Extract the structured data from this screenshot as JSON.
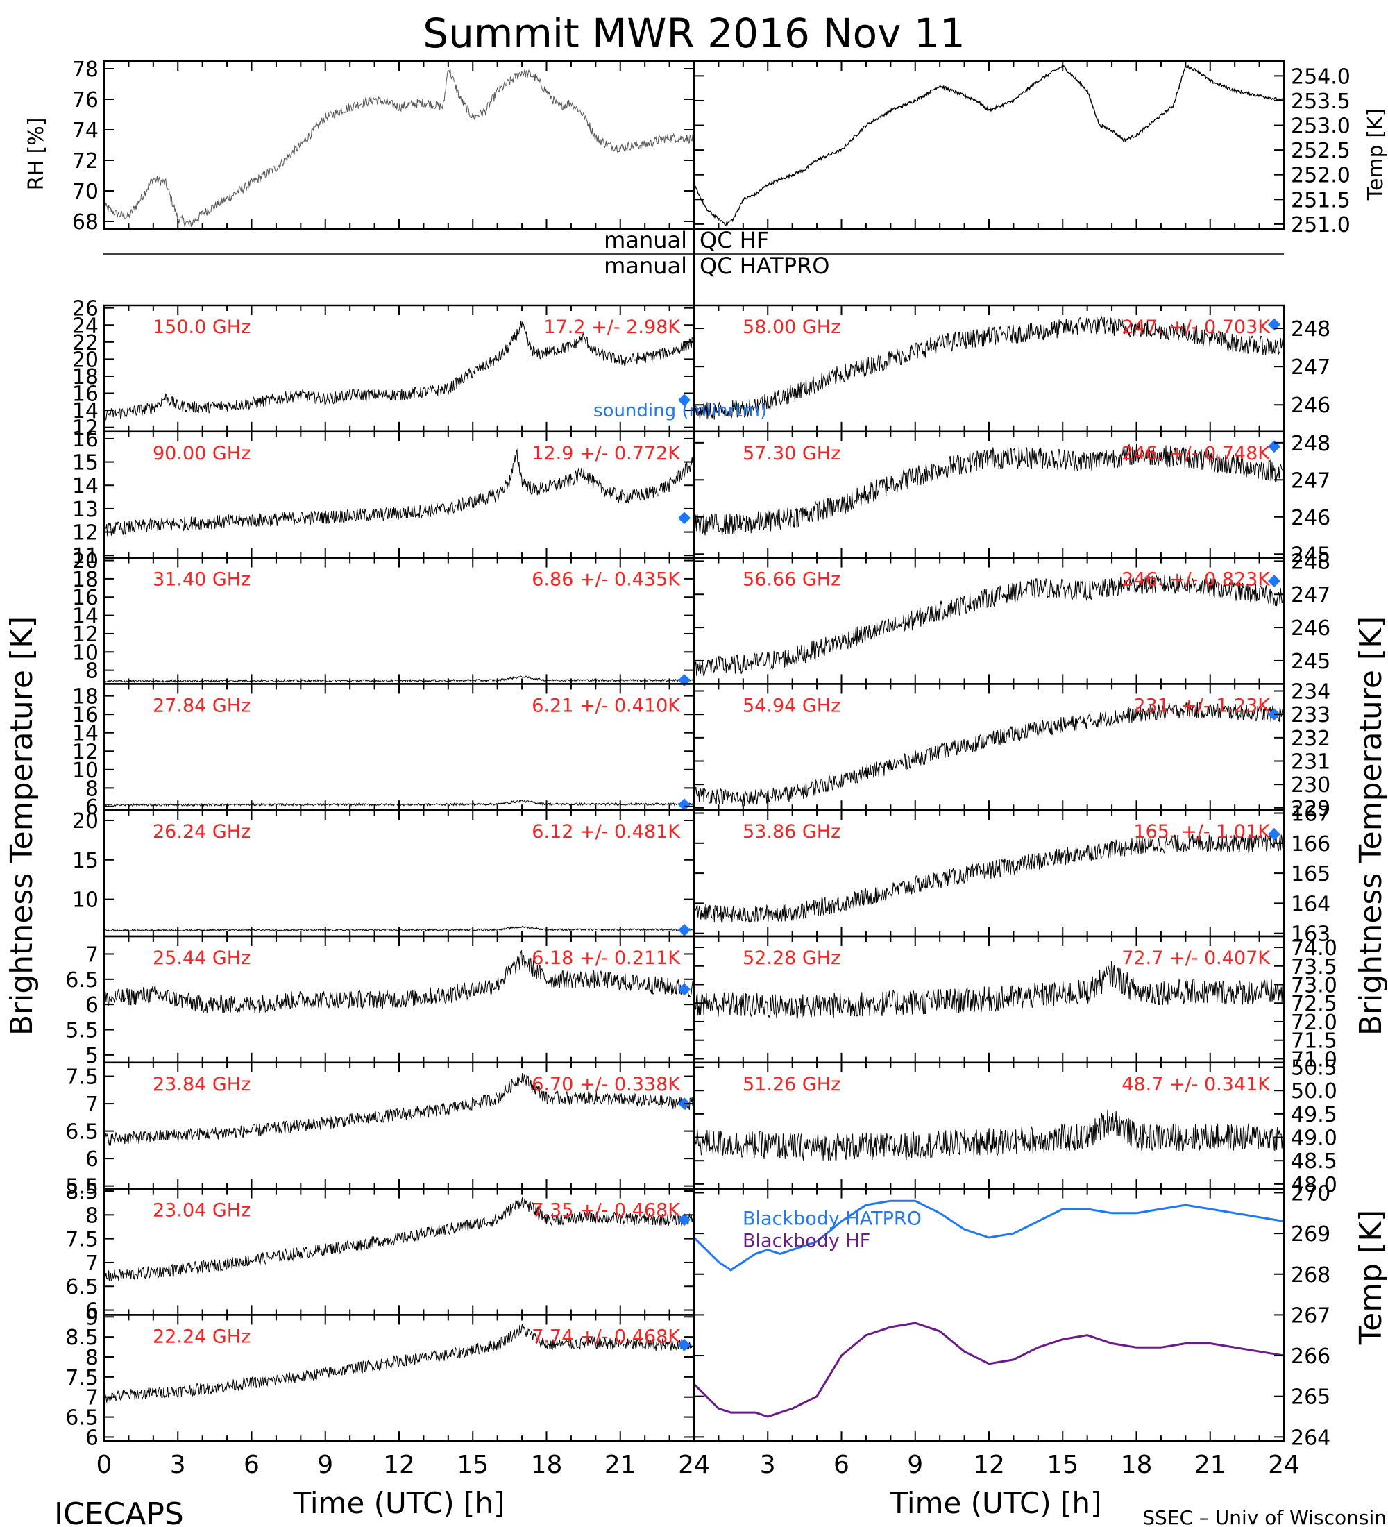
{
  "title": "Summit MWR 2016 Nov 11",
  "footer": {
    "left": "ICECAPS",
    "right": "SSEC – Univ of Wisconsin",
    "xlabel_left": "Time (UTC) [h]",
    "xlabel_right": "Time (UTC) [h]"
  },
  "axis_titles": {
    "left_main": "Brightness Temperature [K]",
    "right_main": "Brightness Temperature [K]",
    "rh": "RH [%]",
    "temp_top": "Temp [K]",
    "temp_bb": "Temp [K]"
  },
  "qc": {
    "label_hf_left": "manual",
    "label_hf_right": "QC HF",
    "label_hat_left": "manual",
    "label_hat_right": "QC HATPRO"
  },
  "colors": {
    "channel_label": "#ff2020",
    "sounding": "#1e78ff",
    "hatpro": "#1e78ff",
    "hf": "#6a1b8a",
    "data": "#000000"
  },
  "chart_data": {
    "type": "line",
    "x_ticks": [
      0,
      3,
      6,
      9,
      12,
      15,
      18,
      21,
      24
    ],
    "xlim": [
      0,
      24
    ],
    "sounding_label": "sounding (mlinrtm)",
    "met_rh": {
      "ylabel": "RH [%]",
      "ylim": [
        67.5,
        78.5
      ],
      "ticks": [
        68,
        70,
        72,
        74,
        76,
        78
      ],
      "x": [
        0,
        0.5,
        1,
        1.5,
        2,
        2.5,
        3,
        3.5,
        4,
        5,
        6,
        7,
        8,
        9,
        10,
        11,
        12,
        13,
        13.8,
        14,
        14.5,
        15,
        15.5,
        16,
        17,
        17.5,
        18,
        18.5,
        19,
        19.5,
        20,
        20.5,
        21,
        21.5,
        22,
        22.5,
        23,
        24
      ],
      "y": [
        69,
        68.5,
        68.3,
        69.5,
        70.8,
        70.5,
        68.2,
        67.8,
        68.5,
        69.5,
        70.5,
        71.5,
        73,
        74.8,
        75.5,
        76,
        75.5,
        75.8,
        75.5,
        78.1,
        76,
        74.8,
        75.2,
        76.5,
        77.8,
        77.5,
        76.5,
        75.5,
        75.8,
        75,
        73.5,
        73,
        72.8,
        73,
        73,
        73.3,
        73.5,
        73.4
      ]
    },
    "met_temp": {
      "ylabel": "Temp [K]",
      "ylim": [
        250.9,
        254.3
      ],
      "ticks": [
        251.0,
        251.5,
        252.0,
        252.5,
        253.0,
        253.5,
        254.0
      ],
      "x": [
        0,
        0.5,
        1,
        1.3,
        1.6,
        2,
        2.5,
        3,
        3.5,
        4,
        4.5,
        5,
        6,
        7,
        8,
        9,
        10,
        11,
        11.5,
        12,
        12.5,
        13,
        14,
        15,
        15.2,
        16,
        16.5,
        17,
        17.5,
        18,
        18.5,
        19,
        19.5,
        20,
        20.5,
        21,
        22,
        23,
        24
      ],
      "y": [
        251.8,
        251.3,
        251.1,
        251.0,
        251.1,
        251.5,
        251.6,
        251.8,
        251.9,
        252.0,
        252.1,
        252.3,
        252.5,
        253.0,
        253.3,
        253.5,
        253.8,
        253.6,
        253.5,
        253.3,
        253.4,
        253.5,
        253.9,
        254.2,
        254.1,
        253.7,
        253.0,
        252.9,
        252.7,
        252.8,
        253.0,
        253.2,
        253.4,
        254.2,
        254.1,
        253.9,
        253.7,
        253.6,
        253.5
      ]
    },
    "left_channels": [
      {
        "freq": "150.0 GHz",
        "stat": "17.2 +/- 2.98K",
        "ylim": [
          11.5,
          26.3
        ],
        "ticks": [
          12,
          14,
          16,
          18,
          20,
          22,
          24,
          26
        ],
        "noise": 0.7,
        "sounding": 15.2,
        "x": [
          0,
          1,
          2,
          2.5,
          3,
          4,
          6,
          8,
          9,
          10,
          12,
          14,
          15,
          16,
          16.5,
          17,
          17.3,
          17.6,
          18,
          19,
          19.5,
          20,
          21,
          22,
          23,
          24
        ],
        "y": [
          13.5,
          13.8,
          14.3,
          15.5,
          14.5,
          14.3,
          14.8,
          15.8,
          15.3,
          15.8,
          15.8,
          16.5,
          18.5,
          20,
          21.5,
          24,
          21.5,
          20.5,
          20.8,
          21.5,
          22.5,
          20.8,
          19.8,
          20.2,
          20.8,
          22
        ]
      },
      {
        "freq": "90.00 GHz",
        "stat": "12.9 +/- 0.772K",
        "ylim": [
          10.9,
          16.3
        ],
        "ticks": [
          11,
          12,
          13,
          14,
          15,
          16
        ],
        "noise": 0.3,
        "sounding": 12.6,
        "x": [
          0,
          2,
          4,
          6,
          8,
          10,
          12,
          14,
          15,
          16,
          16.5,
          16.8,
          17,
          17.5,
          18,
          19,
          19.5,
          20,
          21,
          22,
          23,
          24
        ],
        "y": [
          12.1,
          12.3,
          12.4,
          12.5,
          12.6,
          12.7,
          12.8,
          13,
          13.3,
          13.6,
          14.2,
          15.3,
          14.2,
          13.8,
          13.9,
          14.2,
          14.6,
          14,
          13.5,
          13.6,
          14,
          15
        ]
      },
      {
        "freq": "31.40 GHz",
        "stat": "6.86 +/- 0.435K",
        "ylim": [
          6.5,
          20.3
        ],
        "ticks": [
          8,
          10,
          12,
          14,
          16,
          18,
          20
        ],
        "noise": 0.12,
        "sounding": 6.9,
        "x": [
          0,
          6,
          12,
          16,
          17,
          18,
          24
        ],
        "y": [
          6.8,
          6.85,
          6.85,
          6.9,
          7.3,
          6.9,
          6.9
        ]
      },
      {
        "freq": "27.84 GHz",
        "stat": "6.21 +/- 0.410K",
        "ylim": [
          5.6,
          19.3
        ],
        "ticks": [
          6,
          8,
          10,
          12,
          14,
          16,
          18
        ],
        "noise": 0.12,
        "sounding": 6.2,
        "x": [
          0,
          6,
          12,
          16,
          17,
          18,
          24
        ],
        "y": [
          6.15,
          6.2,
          6.2,
          6.25,
          6.6,
          6.25,
          6.25
        ]
      },
      {
        "freq": "26.24 GHz",
        "stat": "6.12 +/- 0.481K",
        "ylim": [
          5.3,
          21.3
        ],
        "ticks": [
          10,
          15,
          20
        ],
        "noise": 0.12,
        "sounding": 6.1,
        "x": [
          0,
          6,
          12,
          16,
          17,
          18,
          24
        ],
        "y": [
          6.05,
          6.1,
          6.1,
          6.15,
          6.5,
          6.15,
          6.15
        ]
      },
      {
        "freq": "25.44 GHz",
        "stat": "6.18 +/- 0.211K",
        "ylim": [
          4.85,
          7.35
        ],
        "ticks": [
          5.0,
          5.5,
          6.0,
          6.5,
          7.0
        ],
        "noise": 0.18,
        "sounding": 6.3,
        "x": [
          0,
          2,
          4,
          6,
          8,
          10,
          12,
          14,
          16,
          17,
          18,
          20,
          22,
          24
        ],
        "y": [
          6.1,
          6.2,
          6.0,
          6.0,
          6.1,
          6.1,
          6.1,
          6.2,
          6.4,
          6.9,
          6.5,
          6.5,
          6.4,
          6.3
        ]
      },
      {
        "freq": "23.84 GHz",
        "stat": "6.70 +/- 0.338K",
        "ylim": [
          5.45,
          7.75
        ],
        "ticks": [
          5.5,
          6.0,
          6.5,
          7.0,
          7.5
        ],
        "noise": 0.12,
        "sounding": 7.0,
        "x": [
          0,
          2,
          4,
          6,
          8,
          10,
          12,
          14,
          16,
          17,
          18,
          20,
          22,
          24
        ],
        "y": [
          6.35,
          6.4,
          6.45,
          6.5,
          6.6,
          6.7,
          6.8,
          6.9,
          7.1,
          7.5,
          7.1,
          7.1,
          7.05,
          7.0
        ]
      },
      {
        "freq": "23.04 GHz",
        "stat": "7.35 +/- 0.468K",
        "ylim": [
          5.9,
          8.55
        ],
        "ticks": [
          6.0,
          6.5,
          7.0,
          7.5,
          8.0,
          8.5
        ],
        "noise": 0.13,
        "sounding": 7.9,
        "x": [
          0,
          2,
          4,
          6,
          8,
          10,
          12,
          14,
          16,
          17,
          18,
          20,
          22,
          24
        ],
        "y": [
          6.7,
          6.8,
          6.9,
          7.05,
          7.2,
          7.35,
          7.5,
          7.7,
          7.9,
          8.3,
          7.9,
          7.95,
          7.9,
          7.9
        ]
      },
      {
        "freq": "22.24 GHz",
        "stat": "7.74 +/- 0.468K",
        "ylim": [
          5.9,
          9.05
        ],
        "ticks": [
          6.0,
          6.5,
          7.0,
          7.5,
          8.0,
          8.5,
          9.0
        ],
        "noise": 0.15,
        "sounding": 8.3,
        "x": [
          0,
          2,
          4,
          6,
          8,
          10,
          12,
          14,
          16,
          17,
          18,
          20,
          22,
          24
        ],
        "y": [
          7.0,
          7.1,
          7.2,
          7.35,
          7.5,
          7.7,
          7.9,
          8.05,
          8.3,
          8.7,
          8.3,
          8.35,
          8.3,
          8.3
        ]
      }
    ],
    "right_channels": [
      {
        "freq": "58.00 GHz",
        "stat": "247. +/- 0.703K",
        "ylim": [
          245.3,
          248.6
        ],
        "ticks": [
          246,
          247,
          248
        ],
        "noise": 0.25,
        "sounding": 248.1,
        "x": [
          0,
          2,
          4,
          6,
          8,
          10,
          12,
          14,
          16,
          18,
          20,
          22,
          24
        ],
        "y": [
          245.8,
          245.9,
          246.3,
          246.8,
          247.2,
          247.6,
          247.8,
          247.9,
          248.1,
          248.0,
          247.9,
          247.6,
          247.5
        ]
      },
      {
        "freq": "57.30 GHz",
        "stat": "246. +/- 0.748K",
        "ylim": [
          244.9,
          248.3
        ],
        "ticks": [
          245,
          246,
          247,
          248
        ],
        "noise": 0.3,
        "sounding": 247.9,
        "x": [
          0,
          2,
          4,
          6,
          8,
          10,
          12,
          14,
          16,
          18,
          20,
          22,
          24
        ],
        "y": [
          245.8,
          245.8,
          246.0,
          246.3,
          246.9,
          247.3,
          247.6,
          247.6,
          247.5,
          247.7,
          247.6,
          247.4,
          247.2
        ]
      },
      {
        "freq": "56.66 GHz",
        "stat": "246. +/- 0.823K",
        "ylim": [
          244.3,
          248.1
        ],
        "ticks": [
          245,
          246,
          247,
          248
        ],
        "noise": 0.3,
        "sounding": 247.4,
        "x": [
          0,
          2,
          4,
          6,
          8,
          10,
          12,
          14,
          16,
          18,
          20,
          22,
          24
        ],
        "y": [
          244.8,
          244.9,
          245.1,
          245.6,
          246.0,
          246.5,
          246.9,
          247.2,
          247.1,
          247.3,
          247.3,
          247.1,
          246.9
        ]
      },
      {
        "freq": "54.94 GHz",
        "stat": "231. +/- 1.23K",
        "ylim": [
          228.9,
          234.3
        ],
        "ticks": [
          229,
          230,
          231,
          232,
          233,
          234
        ],
        "noise": 0.35,
        "sounding": 233.0,
        "x": [
          0,
          2,
          4,
          6,
          8,
          10,
          12,
          14,
          16,
          18,
          20,
          22,
          24
        ],
        "y": [
          229.6,
          229.4,
          229.6,
          230.2,
          230.8,
          231.4,
          231.9,
          232.4,
          232.7,
          233.0,
          233.2,
          233.1,
          233.0
        ]
      },
      {
        "freq": "53.86 GHz",
        "stat": "165. +/- 1.01K",
        "ylim": [
          162.9,
          167.1
        ],
        "ticks": [
          163,
          164,
          165,
          166,
          167
        ],
        "noise": 0.3,
        "sounding": 166.3,
        "x": [
          0,
          2,
          4,
          6,
          8,
          10,
          12,
          14,
          16,
          18,
          20,
          22,
          24
        ],
        "y": [
          163.7,
          163.6,
          163.7,
          164.0,
          164.4,
          164.8,
          165.1,
          165.4,
          165.7,
          165.9,
          166.0,
          166.0,
          166.0
        ]
      },
      {
        "freq": "52.28 GHz",
        "stat": "72.7 +/- 0.407K",
        "ylim": [
          70.9,
          74.3
        ],
        "ticks": [
          71.0,
          71.5,
          72.0,
          72.5,
          73.0,
          73.5,
          74.0
        ],
        "noise": 0.35,
        "sounding": null,
        "x": [
          0,
          4,
          8,
          12,
          16,
          17,
          18,
          24
        ],
        "y": [
          72.5,
          72.4,
          72.5,
          72.6,
          72.8,
          73.3,
          72.8,
          72.8
        ]
      },
      {
        "freq": "51.26 GHz",
        "stat": "48.7 +/- 0.341K",
        "ylim": [
          47.9,
          50.6
        ],
        "ticks": [
          48.0,
          48.5,
          49.0,
          49.5,
          50.0,
          50.5
        ],
        "noise": 0.3,
        "sounding": null,
        "x": [
          0,
          4,
          8,
          12,
          16,
          17,
          18,
          24
        ],
        "y": [
          48.9,
          48.8,
          48.8,
          48.9,
          49.0,
          49.4,
          49.0,
          49.0
        ]
      }
    ],
    "blackbody": {
      "ylabel": "Temp [K]",
      "ylim": [
        263.9,
        270.1
      ],
      "ticks": [
        264,
        265,
        266,
        267,
        268,
        269,
        270
      ],
      "hatpro_label": "Blackbody HATPRO",
      "hf_label": "Blackbody HF",
      "x": [
        0,
        1,
        1.5,
        2,
        2.5,
        3,
        3.5,
        4,
        5,
        6,
        7,
        8,
        9,
        10,
        11,
        12,
        13,
        14,
        15,
        16,
        17,
        18,
        19,
        20,
        21,
        22,
        23,
        24
      ],
      "hatpro": [
        268.9,
        268.3,
        268.1,
        268.3,
        268.5,
        268.6,
        268.5,
        268.6,
        268.8,
        269.3,
        269.7,
        269.8,
        269.8,
        269.5,
        269.1,
        268.9,
        269.0,
        269.3,
        269.6,
        269.6,
        269.5,
        269.5,
        269.6,
        269.7,
        269.6,
        269.5,
        269.4,
        269.3
      ],
      "hf": [
        265.3,
        264.7,
        264.6,
        264.6,
        264.6,
        264.5,
        264.6,
        264.7,
        265.0,
        266.0,
        266.5,
        266.7,
        266.8,
        266.6,
        266.1,
        265.8,
        265.9,
        266.2,
        266.4,
        266.5,
        266.3,
        266.2,
        266.2,
        266.3,
        266.3,
        266.2,
        266.1,
        266.0
      ]
    }
  }
}
